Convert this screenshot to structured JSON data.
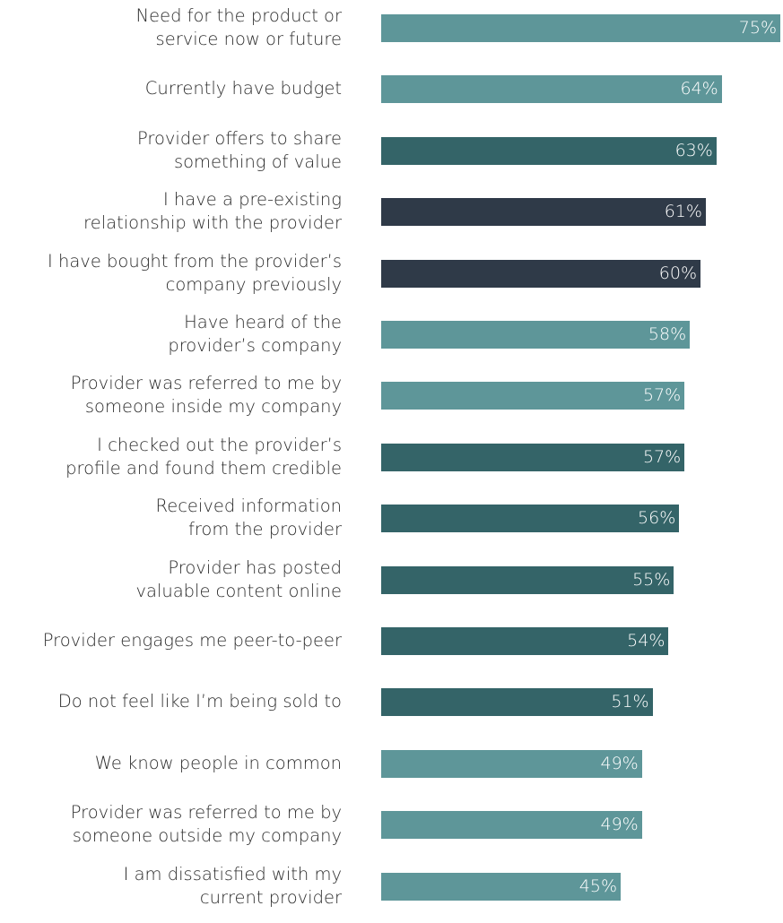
{
  "chart_data": {
    "type": "bar",
    "orientation": "horizontal",
    "xlim": [
      0,
      100
    ],
    "categories": [
      "Need for the product or\nservice now or future",
      "Currently have budget",
      "Provider offers to share\nsomething of value",
      "I have a pre-existing\nrelationship with the provider",
      "I have bought from the provider’s\ncompany previously",
      "Have heard of the\nprovider’s company",
      "Provider was referred to me by\nsomeone inside my company",
      "I checked out the provider’s\nprofile and found them credible",
      "Received information\nfrom the provider",
      "Provider has posted\nvaluable content online",
      "Provider engages me peer-to-peer",
      "Do not feel like I’m being sold to",
      "We know people in common",
      "Provider was referred to me by\nsomeone outside my company",
      "I am dissatisfied with my\ncurrent provider"
    ],
    "values": [
      75,
      64,
      63,
      61,
      60,
      58,
      57,
      57,
      56,
      55,
      54,
      51,
      49,
      49,
      45
    ],
    "value_labels": [
      "75%",
      "64%",
      "63%",
      "61%",
      "60%",
      "58%",
      "57%",
      "57%",
      "56%",
      "55%",
      "54%",
      "51%",
      "49%",
      "49%",
      "45%"
    ],
    "bar_colors": [
      "#5e9699",
      "#5e9699",
      "#346468",
      "#2f3a48",
      "#2f3a48",
      "#5e9699",
      "#5e9699",
      "#346468",
      "#346468",
      "#346468",
      "#346468",
      "#346468",
      "#5e9699",
      "#5e9699",
      "#5e9699"
    ],
    "grid": false,
    "legend": "none"
  }
}
